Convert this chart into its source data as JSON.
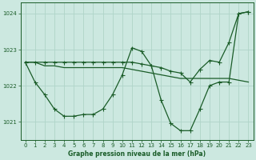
{
  "title": "Graphe pression niveau de la mer (hPa)",
  "background_color": "#cce8e0",
  "grid_color": "#b0d4c8",
  "line_color": "#1a5c28",
  "xlim": [
    -0.5,
    23.5
  ],
  "ylim": [
    1020.5,
    1024.3
  ],
  "yticks": [
    1021,
    1022,
    1023,
    1024
  ],
  "xticks": [
    0,
    1,
    2,
    3,
    4,
    5,
    6,
    7,
    8,
    9,
    10,
    11,
    12,
    13,
    14,
    15,
    16,
    17,
    18,
    19,
    20,
    21,
    22,
    23
  ],
  "series1_x": [
    0,
    1,
    2,
    3,
    4,
    5,
    6,
    7,
    8,
    9,
    10,
    11,
    12,
    13,
    14,
    15,
    16,
    17,
    18,
    19,
    20,
    21,
    22,
    23
  ],
  "series1_y": [
    1022.65,
    1022.65,
    1022.55,
    1022.55,
    1022.5,
    1022.5,
    1022.5,
    1022.5,
    1022.5,
    1022.5,
    1022.5,
    1022.45,
    1022.4,
    1022.35,
    1022.3,
    1022.25,
    1022.2,
    1022.2,
    1022.2,
    1022.2,
    1022.2,
    1022.2,
    1022.15,
    1022.1
  ],
  "series2_x": [
    0,
    1,
    2,
    3,
    4,
    5,
    6,
    7,
    8,
    9,
    10,
    11,
    12,
    13,
    14,
    15,
    16,
    17,
    18,
    19,
    20,
    21,
    22,
    23
  ],
  "series2_y": [
    1022.65,
    1022.1,
    1021.75,
    1021.35,
    1021.15,
    1021.15,
    1021.2,
    1021.2,
    1021.35,
    1021.75,
    1022.3,
    1023.05,
    1022.95,
    1022.55,
    1021.6,
    1020.95,
    1020.75,
    1020.75,
    1021.35,
    1022.0,
    1022.1,
    1022.1,
    1024.0,
    1024.05
  ],
  "series3_x": [
    0,
    1,
    2,
    3,
    4,
    5,
    6,
    7,
    8,
    9,
    10,
    11,
    12,
    13,
    14,
    15,
    16,
    17,
    18,
    19,
    20,
    21,
    22,
    23
  ],
  "series3_y": [
    1022.65,
    1022.65,
    1022.65,
    1022.65,
    1022.65,
    1022.65,
    1022.65,
    1022.65,
    1022.65,
    1022.65,
    1022.65,
    1022.65,
    1022.6,
    1022.55,
    1022.5,
    1022.4,
    1022.35,
    1022.1,
    1022.45,
    1022.7,
    1022.65,
    1023.2,
    1024.0,
    1024.05
  ]
}
